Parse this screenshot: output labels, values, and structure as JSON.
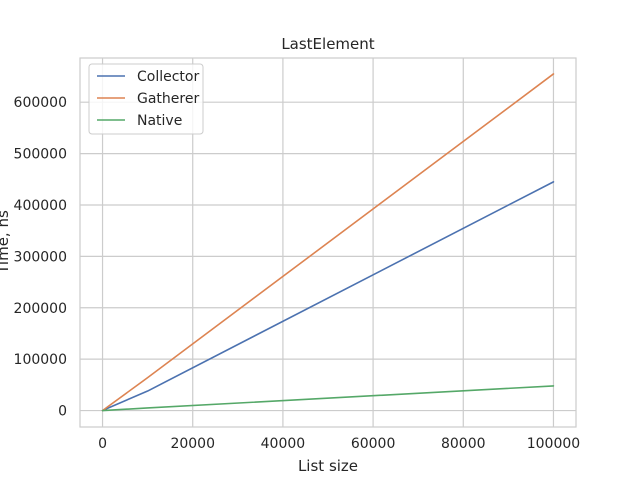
{
  "chart_data": {
    "type": "line",
    "title": "LastElement",
    "xlabel": "List size",
    "ylabel": "Time, ns",
    "xlim": [
      -5000,
      105000
    ],
    "ylim": [
      -32000,
      686000
    ],
    "xticks": [
      0,
      20000,
      40000,
      60000,
      80000,
      100000
    ],
    "xtick_labels": [
      "0",
      "20000",
      "40000",
      "60000",
      "80000",
      "100000"
    ],
    "yticks": [
      0,
      100000,
      200000,
      300000,
      400000,
      500000,
      600000
    ],
    "ytick_labels": [
      "0",
      "100000",
      "200000",
      "300000",
      "400000",
      "500000",
      "600000"
    ],
    "grid": true,
    "legend_position": "top-left",
    "series": [
      {
        "name": "Collector",
        "color": "#4c72b0",
        "x": [
          0,
          10,
          100,
          1000,
          10000,
          100000
        ],
        "y": [
          0,
          50,
          450,
          4000,
          38000,
          445000
        ]
      },
      {
        "name": "Gatherer",
        "color": "#dd8452",
        "x": [
          0,
          10,
          100,
          1000,
          10000,
          100000
        ],
        "y": [
          0,
          70,
          650,
          6500,
          64000,
          655000
        ]
      },
      {
        "name": "Native",
        "color": "#55a868",
        "x": [
          0,
          10,
          100,
          1000,
          10000,
          100000
        ],
        "y": [
          0,
          5,
          50,
          500,
          5000,
          48000
        ]
      }
    ]
  }
}
